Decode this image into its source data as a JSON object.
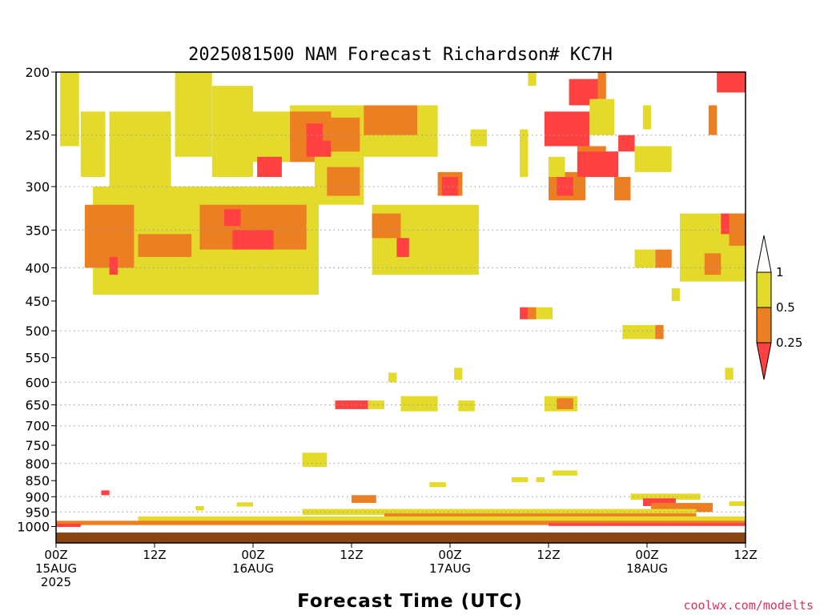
{
  "chart_data": {
    "type": "heatmap",
    "title": "2025081500 NAM Forecast Richardson# KC7H",
    "xlabel": "Forecast Time (UTC)",
    "credit": "coolwx.com/modelts",
    "y_ticks": [
      {
        "label": "200",
        "p": 200,
        "grid": false
      },
      {
        "label": "250",
        "p": 250,
        "grid": true
      },
      {
        "label": "300",
        "p": 300,
        "grid": true
      },
      {
        "label": "350",
        "p": 350,
        "grid": true
      },
      {
        "label": "400",
        "p": 400,
        "grid": true
      },
      {
        "label": "450",
        "p": 450,
        "grid": false
      },
      {
        "label": "500",
        "p": 500,
        "grid": true
      },
      {
        "label": "550",
        "p": 550,
        "grid": false
      },
      {
        "label": "600",
        "p": 600,
        "grid": true
      },
      {
        "label": "650",
        "p": 650,
        "grid": true
      },
      {
        "label": "700",
        "p": 700,
        "grid": true
      },
      {
        "label": "750",
        "p": 750,
        "grid": false
      },
      {
        "label": "800",
        "p": 800,
        "grid": true
      },
      {
        "label": "850",
        "p": 850,
        "grid": false
      },
      {
        "label": "900",
        "p": 900,
        "grid": true
      },
      {
        "label": "950",
        "p": 950,
        "grid": true
      },
      {
        "label": "1000",
        "p": 1000,
        "grid": false
      }
    ],
    "y_range": [
      200,
      1000
    ],
    "x_range_hours": [
      0,
      84
    ],
    "x_ticks": [
      {
        "h": 0,
        "lines": [
          "00Z",
          "15AUG",
          "2025"
        ]
      },
      {
        "h": 12,
        "lines": [
          "12Z"
        ]
      },
      {
        "h": 24,
        "lines": [
          "00Z",
          "16AUG"
        ]
      },
      {
        "h": 36,
        "lines": [
          "12Z"
        ]
      },
      {
        "h": 48,
        "lines": [
          "00Z",
          "17AUG"
        ]
      },
      {
        "h": 60,
        "lines": [
          "12Z"
        ]
      },
      {
        "h": 72,
        "lines": [
          "00Z",
          "18AUG"
        ]
      },
      {
        "h": 84,
        "lines": [
          "12Z"
        ]
      }
    ],
    "grid": "dotted at selected pressure levels",
    "legend": {
      "placement": "right",
      "levels": [
        "1",
        "0.5",
        "0.25"
      ],
      "colors": {
        "r025_05": "#ec7f22",
        "r05_1": "#e3da2c",
        "r_lt025": "#ff4141",
        "gt1": "#ffffff"
      }
    },
    "surface_color": "#8b4513",
    "regions": [
      {
        "class": "yellow",
        "h": [
          0.5,
          2.8
        ],
        "p": [
          200,
          260
        ]
      },
      {
        "class": "yellow",
        "h": [
          3.0,
          6.0
        ],
        "p": [
          230,
          290
        ]
      },
      {
        "class": "yellow",
        "h": [
          6.5,
          14.0
        ],
        "p": [
          230,
          300
        ]
      },
      {
        "class": "yellow",
        "h": [
          14.5,
          19.0
        ],
        "p": [
          200,
          270
        ]
      },
      {
        "class": "yellow",
        "h": [
          19.0,
          24.0
        ],
        "p": [
          210,
          290
        ]
      },
      {
        "class": "yellow",
        "h": [
          24.0,
          28.5
        ],
        "p": [
          230,
          275
        ]
      },
      {
        "class": "yellow",
        "h": [
          4.5,
          32.0
        ],
        "p": [
          300,
          440
        ]
      },
      {
        "class": "orange",
        "h": [
          3.5,
          9.5
        ],
        "p": [
          320,
          400
        ]
      },
      {
        "class": "orange",
        "h": [
          10.0,
          16.5
        ],
        "p": [
          355,
          385
        ]
      },
      {
        "class": "orange",
        "h": [
          17.5,
          30.5
        ],
        "p": [
          320,
          375
        ]
      },
      {
        "class": "red",
        "h": [
          6.5,
          7.5
        ],
        "p": [
          385,
          410
        ]
      },
      {
        "class": "red",
        "h": [
          20.5,
          22.5
        ],
        "p": [
          325,
          345
        ]
      },
      {
        "class": "red",
        "h": [
          21.5,
          26.5
        ],
        "p": [
          350,
          375
        ]
      },
      {
        "class": "yellow",
        "h": [
          28.5,
          46.5
        ],
        "p": [
          225,
          270
        ]
      },
      {
        "class": "orange",
        "h": [
          28.5,
          33.5
        ],
        "p": [
          230,
          275
        ]
      },
      {
        "class": "orange",
        "h": [
          33.5,
          37.0
        ],
        "p": [
          235,
          265
        ]
      },
      {
        "class": "orange",
        "h": [
          37.5,
          44.0
        ],
        "p": [
          225,
          250
        ]
      },
      {
        "class": "red",
        "h": [
          30.5,
          32.5
        ],
        "p": [
          240,
          270
        ]
      },
      {
        "class": "red",
        "h": [
          24.5,
          27.5
        ],
        "p": [
          270,
          290
        ]
      },
      {
        "class": "red",
        "h": [
          32.5,
          33.5
        ],
        "p": [
          255,
          280
        ]
      },
      {
        "class": "yellow",
        "h": [
          31.5,
          37.5
        ],
        "p": [
          270,
          320
        ]
      },
      {
        "class": "orange",
        "h": [
          33.0,
          37.0
        ],
        "p": [
          280,
          310
        ]
      },
      {
        "class": "yellow",
        "h": [
          38.5,
          51.5
        ],
        "p": [
          320,
          410
        ]
      },
      {
        "class": "orange",
        "h": [
          38.5,
          42.0
        ],
        "p": [
          330,
          360
        ]
      },
      {
        "class": "red",
        "h": [
          41.5,
          43.0
        ],
        "p": [
          360,
          385
        ]
      },
      {
        "class": "orange",
        "h": [
          46.5,
          49.5
        ],
        "p": [
          285,
          310
        ]
      },
      {
        "class": "red",
        "h": [
          47.0,
          49.0
        ],
        "p": [
          290,
          310
        ]
      },
      {
        "class": "yellow",
        "h": [
          50.5,
          52.5
        ],
        "p": [
          245,
          260
        ]
      },
      {
        "class": "yellow",
        "h": [
          56.5,
          57.5
        ],
        "p": [
          245,
          290
        ]
      },
      {
        "class": "yellow",
        "h": [
          57.5,
          58.5
        ],
        "p": [
          200,
          210
        ]
      },
      {
        "class": "red",
        "h": [
          59.5,
          65.0
        ],
        "p": [
          230,
          260
        ]
      },
      {
        "class": "red",
        "h": [
          62.5,
          66.0
        ],
        "p": [
          205,
          225
        ]
      },
      {
        "class": "orange",
        "h": [
          60.0,
          64.5
        ],
        "p": [
          285,
          315
        ]
      },
      {
        "class": "red",
        "h": [
          61.0,
          63.0
        ],
        "p": [
          290,
          310
        ]
      },
      {
        "class": "yellow",
        "h": [
          60.0,
          62.0
        ],
        "p": [
          270,
          290
        ]
      },
      {
        "class": "orange",
        "h": [
          63.5,
          67.0
        ],
        "p": [
          260,
          285
        ]
      },
      {
        "class": "red",
        "h": [
          63.5,
          68.5
        ],
        "p": [
          265,
          290
        ]
      },
      {
        "class": "yellow",
        "h": [
          65.0,
          68.0
        ],
        "p": [
          220,
          250
        ]
      },
      {
        "class": "orange",
        "h": [
          66.0,
          67.0
        ],
        "p": [
          200,
          220
        ]
      },
      {
        "class": "red",
        "h": [
          68.5,
          70.5
        ],
        "p": [
          250,
          265
        ]
      },
      {
        "class": "orange",
        "h": [
          68.0,
          70.0
        ],
        "p": [
          290,
          315
        ]
      },
      {
        "class": "yellow",
        "h": [
          70.5,
          75.0
        ],
        "p": [
          260,
          285
        ]
      },
      {
        "class": "yellow",
        "h": [
          76.0,
          84.0
        ],
        "p": [
          330,
          420
        ]
      },
      {
        "class": "orange",
        "h": [
          79.0,
          81.0
        ],
        "p": [
          380,
          410
        ]
      },
      {
        "class": "orange",
        "h": [
          82.0,
          84.0
        ],
        "p": [
          330,
          370
        ]
      },
      {
        "class": "red",
        "h": [
          81.0,
          82.0
        ],
        "p": [
          330,
          355
        ]
      },
      {
        "class": "red",
        "h": [
          80.5,
          84.0
        ],
        "p": [
          200,
          215
        ]
      },
      {
        "class": "orange",
        "h": [
          79.5,
          80.5
        ],
        "p": [
          225,
          250
        ]
      },
      {
        "class": "yellow",
        "h": [
          71.5,
          72.5
        ],
        "p": [
          225,
          245
        ]
      },
      {
        "class": "yellow",
        "h": [
          70.5,
          73.0
        ],
        "p": [
          375,
          400
        ]
      },
      {
        "class": "orange",
        "h": [
          73.0,
          75.0
        ],
        "p": [
          375,
          400
        ]
      },
      {
        "class": "yellow",
        "h": [
          75.0,
          76.0
        ],
        "p": [
          430,
          450
        ]
      },
      {
        "class": "red",
        "h": [
          56.5,
          57.5
        ],
        "p": [
          460,
          480
        ]
      },
      {
        "class": "orange",
        "h": [
          57.5,
          58.5
        ],
        "p": [
          460,
          480
        ]
      },
      {
        "class": "yellow",
        "h": [
          58.5,
          60.5
        ],
        "p": [
          460,
          480
        ]
      },
      {
        "class": "yellow",
        "h": [
          69.0,
          74.0
        ],
        "p": [
          490,
          515
        ]
      },
      {
        "class": "orange",
        "h": [
          73.0,
          74.0
        ],
        "p": [
          490,
          515
        ]
      },
      {
        "class": "red",
        "h": [
          34.0,
          38.0
        ],
        "p": [
          640,
          660
        ]
      },
      {
        "class": "yellow",
        "h": [
          38.0,
          40.0
        ],
        "p": [
          640,
          660
        ]
      },
      {
        "class": "yellow",
        "h": [
          42.0,
          46.5
        ],
        "p": [
          630,
          665
        ]
      },
      {
        "class": "yellow",
        "h": [
          49.0,
          51.0
        ],
        "p": [
          640,
          665
        ]
      },
      {
        "class": "yellow",
        "h": [
          59.5,
          63.5
        ],
        "p": [
          630,
          665
        ]
      },
      {
        "class": "orange",
        "h": [
          61.0,
          63.0
        ],
        "p": [
          635,
          660
        ]
      },
      {
        "class": "yellow",
        "h": [
          40.5,
          41.5
        ],
        "p": [
          580,
          600
        ]
      },
      {
        "class": "yellow",
        "h": [
          48.5,
          49.5
        ],
        "p": [
          570,
          595
        ]
      },
      {
        "class": "yellow",
        "h": [
          81.5,
          82.5
        ],
        "p": [
          570,
          595
        ]
      },
      {
        "class": "yellow",
        "h": [
          30.0,
          33.0
        ],
        "p": [
          770,
          810
        ]
      },
      {
        "class": "yellow",
        "h": [
          55.5,
          57.5
        ],
        "p": [
          840,
          855
        ]
      },
      {
        "class": "yellow",
        "h": [
          58.5,
          59.5
        ],
        "p": [
          840,
          855
        ]
      },
      {
        "class": "yellow",
        "h": [
          60.5,
          63.5
        ],
        "p": [
          820,
          835
        ]
      },
      {
        "class": "yellow",
        "h": [
          45.5,
          47.5
        ],
        "p": [
          855,
          870
        ]
      },
      {
        "class": "yellow",
        "h": [
          70.0,
          78.5
        ],
        "p": [
          890,
          910
        ]
      },
      {
        "class": "red",
        "h": [
          71.5,
          75.5
        ],
        "p": [
          905,
          930
        ]
      },
      {
        "class": "red",
        "h": [
          75.0,
          79.0
        ],
        "p": [
          925,
          945
        ]
      },
      {
        "class": "orange",
        "h": [
          72.5,
          80.0
        ],
        "p": [
          920,
          950
        ]
      },
      {
        "class": "yellow",
        "h": [
          30.0,
          78.0
        ],
        "p": [
          940,
          960
        ]
      },
      {
        "class": "orange",
        "h": [
          40.0,
          78.0
        ],
        "p": [
          955,
          975
        ]
      },
      {
        "class": "yellow",
        "h": [
          10.0,
          84.0
        ],
        "p": [
          965,
          985
        ]
      },
      {
        "class": "orange",
        "h": [
          0.0,
          84.0
        ],
        "p": [
          980,
          995
        ]
      },
      {
        "class": "red",
        "h": [
          60.0,
          84.0
        ],
        "p": [
          988,
          998
        ]
      },
      {
        "class": "red",
        "h": [
          0.0,
          3.0
        ],
        "p": [
          990,
          1002
        ]
      },
      {
        "class": "orange",
        "h": [
          36.0,
          39.0
        ],
        "p": [
          895,
          920
        ]
      },
      {
        "class": "red",
        "h": [
          5.5,
          6.5
        ],
        "p": [
          880,
          895
        ]
      },
      {
        "class": "yellow",
        "h": [
          22.0,
          24.0
        ],
        "p": [
          918,
          932
        ]
      },
      {
        "class": "yellow",
        "h": [
          17.0,
          18.0
        ],
        "p": [
          930,
          945
        ]
      },
      {
        "class": "yellow",
        "h": [
          82.0,
          84.0
        ],
        "p": [
          915,
          930
        ]
      }
    ]
  }
}
